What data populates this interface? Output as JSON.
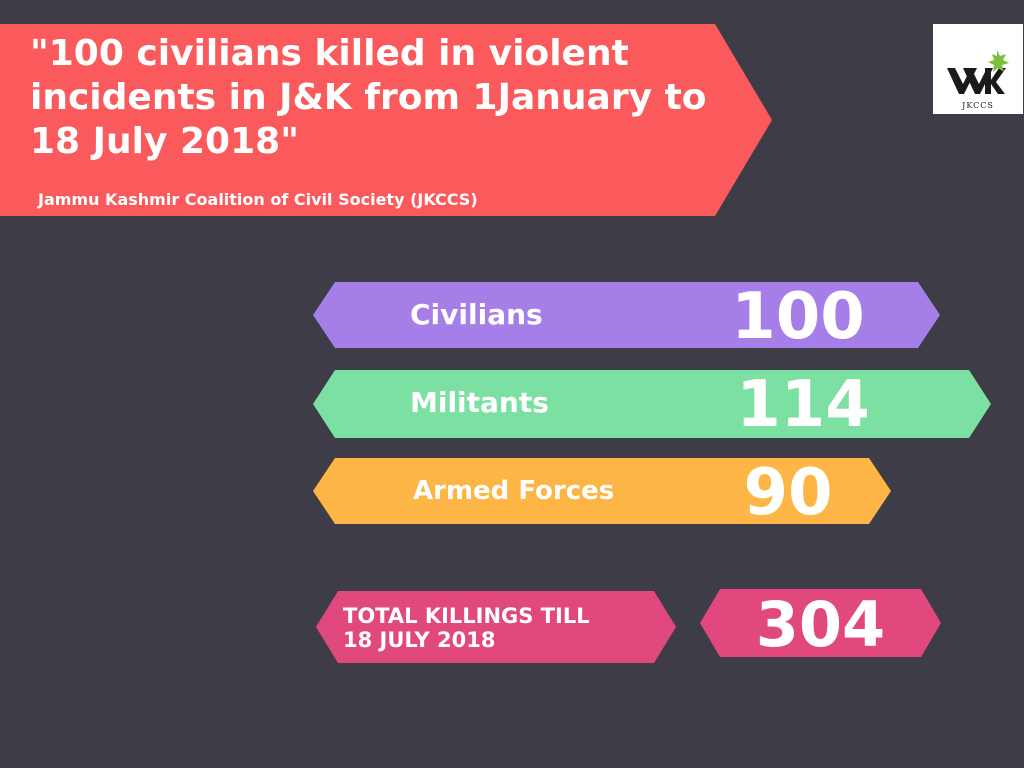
{
  "header": {
    "headline": "\"100 civilians killed in violent incidents in J&K from 1January to 18 July 2018\"",
    "source": "Jammu Kashmir Coalition of Civil Society (JKCCS)"
  },
  "logo": {
    "text": "JKCCS"
  },
  "stats": [
    {
      "label": "Civilians",
      "value": "100",
      "color": "#a57ee8"
    },
    {
      "label": "Militants",
      "value": "114",
      "color": "#7ce0a3"
    },
    {
      "label": "Armed Forces",
      "value": "90",
      "color": "#fdb545"
    }
  ],
  "total": {
    "label_line1": "TOTAL KILLINGS TILL",
    "label_line2": "18 JULY 2018",
    "value": "304",
    "color": "#e0487e"
  },
  "colors": {
    "background": "#3e3c47",
    "banner": "#fa5a5c"
  }
}
